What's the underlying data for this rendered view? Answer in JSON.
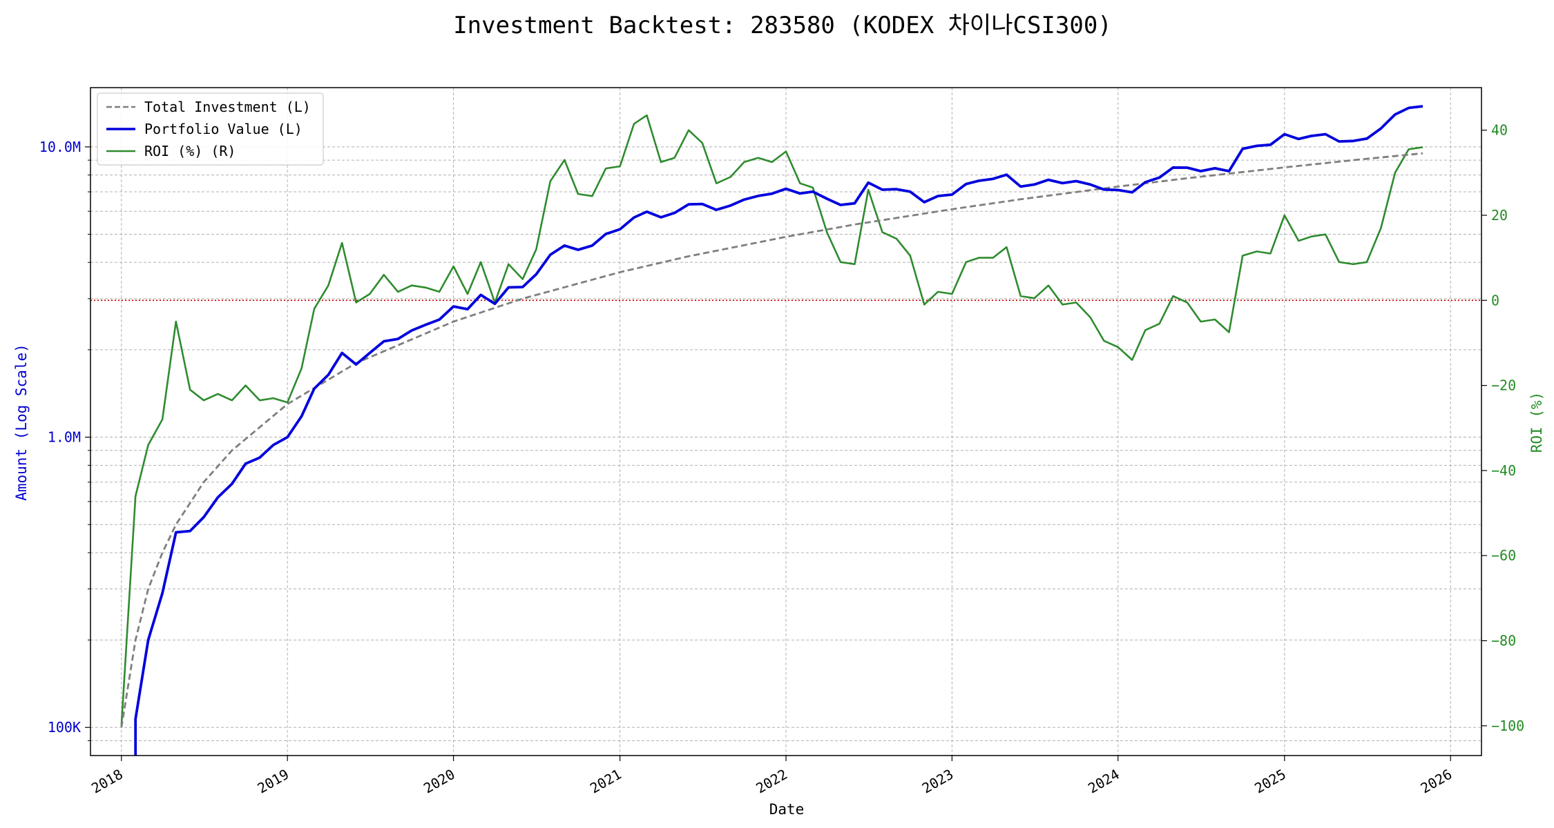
{
  "chart_data": {
    "type": "line",
    "title": "Investment Backtest: 283580 (KODEX 차이나CSI300)",
    "xlabel": "Date",
    "ylabel_left": "Amount (Log Scale)",
    "ylabel_right": "ROI (%)",
    "x_ticks": [
      "2018",
      "2019",
      "2020",
      "2021",
      "2022",
      "2023",
      "2024",
      "2025",
      "2026"
    ],
    "y_left_ticks": [
      {
        "value": 100000,
        "label": "100K"
      },
      {
        "value": 1000000,
        "label": "1.0M"
      },
      {
        "value": 10000000,
        "label": "10.0M"
      }
    ],
    "y_right_ticks": [
      -100,
      -80,
      -60,
      -40,
      -20,
      0,
      20,
      40
    ],
    "y_left_range": [
      80000,
      16000000
    ],
    "y_right_range": [
      -107,
      50
    ],
    "x_range": [
      "2017-10-25",
      "2026-03-10"
    ],
    "scale_left": "log",
    "grid": true,
    "legend_position": "top-left",
    "reference_line": {
      "axis": "right",
      "value": 0,
      "style": "dotted",
      "color": "#cc0000"
    },
    "colors": {
      "total_investment": "#7f7f7f",
      "portfolio": "#0000dd",
      "roi": "#2e8b2e",
      "left_axis": "#0000cc",
      "right_axis": "#228b22"
    },
    "legend": [
      "Total Investment (L)",
      "Portfolio Value (L)",
      "ROI (%) (R)"
    ],
    "series": [
      {
        "name": "Total Investment (L)",
        "axis": "left",
        "style": "dashed",
        "points": [
          [
            "2018-01-01",
            100000
          ],
          [
            "2018-02-01",
            200000
          ],
          [
            "2018-03-01",
            300000
          ],
          [
            "2018-04-01",
            400000
          ],
          [
            "2018-05-01",
            500000
          ],
          [
            "2018-07-01",
            700000
          ],
          [
            "2018-09-01",
            900000
          ],
          [
            "2019-01-01",
            1300000
          ],
          [
            "2019-06-01",
            1800000
          ],
          [
            "2020-01-01",
            2500000
          ],
          [
            "2020-06-01",
            3000000
          ],
          [
            "2021-01-01",
            3700000
          ],
          [
            "2021-06-01",
            4200000
          ],
          [
            "2022-01-01",
            4900000
          ],
          [
            "2022-06-01",
            5400000
          ],
          [
            "2023-01-01",
            6100000
          ],
          [
            "2023-06-01",
            6600000
          ],
          [
            "2024-01-01",
            7300000
          ],
          [
            "2024-06-01",
            7800000
          ],
          [
            "2025-01-01",
            8500000
          ],
          [
            "2025-06-01",
            9000000
          ],
          [
            "2025-11-01",
            9500000
          ]
        ]
      },
      {
        "name": "Portfolio Value (L)",
        "axis": "left",
        "style": "solid",
        "points": [
          [
            "2018-02-01",
            20000
          ],
          [
            "2018-02-01",
            107000
          ],
          [
            "2018-03-01",
            200000
          ],
          [
            "2018-04-01",
            290000
          ],
          [
            "2018-05-01",
            470000
          ],
          [
            "2018-06-01",
            475000
          ],
          [
            "2018-07-01",
            530000
          ],
          [
            "2018-08-01",
            620000
          ],
          [
            "2018-09-01",
            690000
          ],
          [
            "2018-10-01",
            810000
          ],
          [
            "2018-11-01",
            850000
          ],
          [
            "2018-12-01",
            940000
          ],
          [
            "2019-01-01",
            1000000
          ],
          [
            "2019-02-01",
            1180000
          ],
          [
            "2019-03-01",
            1470000
          ],
          [
            "2019-04-01",
            1640000
          ],
          [
            "2019-05-01",
            1950000
          ],
          [
            "2019-06-01",
            1780000
          ],
          [
            "2019-07-01",
            1950000
          ],
          [
            "2019-08-01",
            2140000
          ],
          [
            "2019-09-01",
            2180000
          ],
          [
            "2019-10-01",
            2330000
          ],
          [
            "2019-11-01",
            2440000
          ],
          [
            "2019-12-01",
            2540000
          ],
          [
            "2020-01-01",
            2820000
          ],
          [
            "2020-02-01",
            2760000
          ],
          [
            "2020-03-01",
            3090000
          ],
          [
            "2020-04-01",
            2880000
          ],
          [
            "2020-05-01",
            3280000
          ],
          [
            "2020-06-01",
            3290000
          ],
          [
            "2020-07-01",
            3640000
          ],
          [
            "2020-08-01",
            4250000
          ],
          [
            "2020-09-01",
            4570000
          ],
          [
            "2020-10-01",
            4420000
          ],
          [
            "2020-11-01",
            4570000
          ],
          [
            "2020-12-01",
            5010000
          ],
          [
            "2021-01-01",
            5200000
          ],
          [
            "2021-02-01",
            5710000
          ],
          [
            "2021-03-01",
            5980000
          ],
          [
            "2021-04-01",
            5720000
          ],
          [
            "2021-05-01",
            5920000
          ],
          [
            "2021-06-01",
            6340000
          ],
          [
            "2021-07-01",
            6360000
          ],
          [
            "2021-08-01",
            6070000
          ],
          [
            "2021-09-01",
            6280000
          ],
          [
            "2021-10-01",
            6580000
          ],
          [
            "2021-11-01",
            6780000
          ],
          [
            "2021-12-01",
            6900000
          ],
          [
            "2022-01-01",
            7170000
          ],
          [
            "2022-02-01",
            6910000
          ],
          [
            "2022-03-01",
            7010000
          ],
          [
            "2022-04-01",
            6630000
          ],
          [
            "2022-05-01",
            6310000
          ],
          [
            "2022-06-01",
            6390000
          ],
          [
            "2022-07-01",
            7530000
          ],
          [
            "2022-08-01",
            7120000
          ],
          [
            "2022-09-01",
            7150000
          ],
          [
            "2022-10-01",
            7010000
          ],
          [
            "2022-11-01",
            6450000
          ],
          [
            "2022-12-01",
            6770000
          ],
          [
            "2023-01-01",
            6850000
          ],
          [
            "2023-02-01",
            7450000
          ],
          [
            "2023-03-01",
            7640000
          ],
          [
            "2023-04-01",
            7760000
          ],
          [
            "2023-05-01",
            8020000
          ],
          [
            "2023-06-01",
            7300000
          ],
          [
            "2023-07-01",
            7420000
          ],
          [
            "2023-08-01",
            7700000
          ],
          [
            "2023-09-01",
            7500000
          ],
          [
            "2023-10-01",
            7620000
          ],
          [
            "2023-11-01",
            7420000
          ],
          [
            "2023-12-01",
            7130000
          ],
          [
            "2024-01-01",
            7100000
          ],
          [
            "2024-02-01",
            6970000
          ],
          [
            "2024-03-01",
            7560000
          ],
          [
            "2024-04-01",
            7840000
          ],
          [
            "2024-05-01",
            8490000
          ],
          [
            "2024-06-01",
            8480000
          ],
          [
            "2024-07-01",
            8250000
          ],
          [
            "2024-08-01",
            8440000
          ],
          [
            "2024-09-01",
            8250000
          ],
          [
            "2024-10-01",
            9850000
          ],
          [
            "2024-11-01",
            10080000
          ],
          [
            "2024-12-01",
            10170000
          ],
          [
            "2025-01-01",
            11060000
          ],
          [
            "2025-02-01",
            10650000
          ],
          [
            "2025-03-01",
            10910000
          ],
          [
            "2025-04-01",
            11060000
          ],
          [
            "2025-05-01",
            10440000
          ],
          [
            "2025-06-01",
            10480000
          ],
          [
            "2025-07-01",
            10680000
          ],
          [
            "2025-08-01",
            11570000
          ],
          [
            "2025-09-01",
            12930000
          ],
          [
            "2025-10-01",
            13620000
          ],
          [
            "2025-11-01",
            13800000
          ]
        ]
      },
      {
        "name": "ROI (%) (R)",
        "axis": "right",
        "style": "solid",
        "points": [
          [
            "2018-01-01",
            -100
          ],
          [
            "2018-02-01",
            -46
          ],
          [
            "2018-03-01",
            -34
          ],
          [
            "2018-04-01",
            -28
          ],
          [
            "2018-05-01",
            -5
          ],
          [
            "2018-06-01",
            -21
          ],
          [
            "2018-07-01",
            -23.5
          ],
          [
            "2018-08-01",
            -22
          ],
          [
            "2018-09-01",
            -23.5
          ],
          [
            "2018-10-01",
            -20
          ],
          [
            "2018-11-01",
            -23.5
          ],
          [
            "2018-12-01",
            -23
          ],
          [
            "2019-01-01",
            -24
          ],
          [
            "2019-02-01",
            -16
          ],
          [
            "2019-03-01",
            -2
          ],
          [
            "2019-04-01",
            3.5
          ],
          [
            "2019-05-01",
            13.5
          ],
          [
            "2019-06-01",
            -0.5
          ],
          [
            "2019-07-01",
            1.5
          ],
          [
            "2019-08-01",
            6
          ],
          [
            "2019-09-01",
            2
          ],
          [
            "2019-10-01",
            3.5
          ],
          [
            "2019-11-01",
            3
          ],
          [
            "2019-12-01",
            2
          ],
          [
            "2020-01-01",
            8
          ],
          [
            "2020-02-01",
            1.5
          ],
          [
            "2020-03-01",
            9
          ],
          [
            "2020-04-01",
            -0.5
          ],
          [
            "2020-05-01",
            8.5
          ],
          [
            "2020-06-01",
            5
          ],
          [
            "2020-07-01",
            12
          ],
          [
            "2020-08-01",
            28
          ],
          [
            "2020-09-01",
            33
          ],
          [
            "2020-10-01",
            25
          ],
          [
            "2020-11-01",
            24.5
          ],
          [
            "2020-12-01",
            31
          ],
          [
            "2021-01-01",
            31.5
          ],
          [
            "2021-02-01",
            41.5
          ],
          [
            "2021-03-01",
            43.5
          ],
          [
            "2021-04-01",
            32.5
          ],
          [
            "2021-05-01",
            33.5
          ],
          [
            "2021-06-01",
            40
          ],
          [
            "2021-07-01",
            37
          ],
          [
            "2021-08-01",
            27.5
          ],
          [
            "2021-09-01",
            29
          ],
          [
            "2021-10-01",
            32.5
          ],
          [
            "2021-11-01",
            33.5
          ],
          [
            "2021-12-01",
            32.5
          ],
          [
            "2022-01-01",
            35
          ],
          [
            "2022-02-01",
            27.5
          ],
          [
            "2022-03-01",
            26.5
          ],
          [
            "2022-04-01",
            16
          ],
          [
            "2022-05-01",
            9
          ],
          [
            "2022-06-01",
            8.5
          ],
          [
            "2022-07-01",
            26
          ],
          [
            "2022-08-01",
            16
          ],
          [
            "2022-09-01",
            14.5
          ],
          [
            "2022-10-01",
            10.5
          ],
          [
            "2022-11-01",
            -1
          ],
          [
            "2022-12-01",
            2
          ],
          [
            "2023-01-01",
            1.5
          ],
          [
            "2023-02-01",
            9
          ],
          [
            "2023-03-01",
            10
          ],
          [
            "2023-04-01",
            10
          ],
          [
            "2023-05-01",
            12.5
          ],
          [
            "2023-06-01",
            1
          ],
          [
            "2023-07-01",
            0.5
          ],
          [
            "2023-08-01",
            3.5
          ],
          [
            "2023-09-01",
            -1
          ],
          [
            "2023-10-01",
            -0.5
          ],
          [
            "2023-11-01",
            -4
          ],
          [
            "2023-12-01",
            -9.5
          ],
          [
            "2024-01-01",
            -11
          ],
          [
            "2024-02-01",
            -14
          ],
          [
            "2024-03-01",
            -7
          ],
          [
            "2024-04-01",
            -5.5
          ],
          [
            "2024-05-01",
            1
          ],
          [
            "2024-06-01",
            -0.5
          ],
          [
            "2024-07-01",
            -5
          ],
          [
            "2024-08-01",
            -4.5
          ],
          [
            "2024-09-01",
            -7.5
          ],
          [
            "2024-10-01",
            10.5
          ],
          [
            "2024-11-01",
            11.5
          ],
          [
            "2024-12-01",
            11
          ],
          [
            "2025-01-01",
            20
          ],
          [
            "2025-02-01",
            14
          ],
          [
            "2025-03-01",
            15
          ],
          [
            "2025-04-01",
            15.5
          ],
          [
            "2025-05-01",
            9
          ],
          [
            "2025-06-01",
            8.5
          ],
          [
            "2025-07-01",
            9
          ],
          [
            "2025-08-01",
            17
          ],
          [
            "2025-09-01",
            30
          ],
          [
            "2025-10-01",
            35.5
          ],
          [
            "2025-11-01",
            36
          ]
        ]
      }
    ]
  }
}
